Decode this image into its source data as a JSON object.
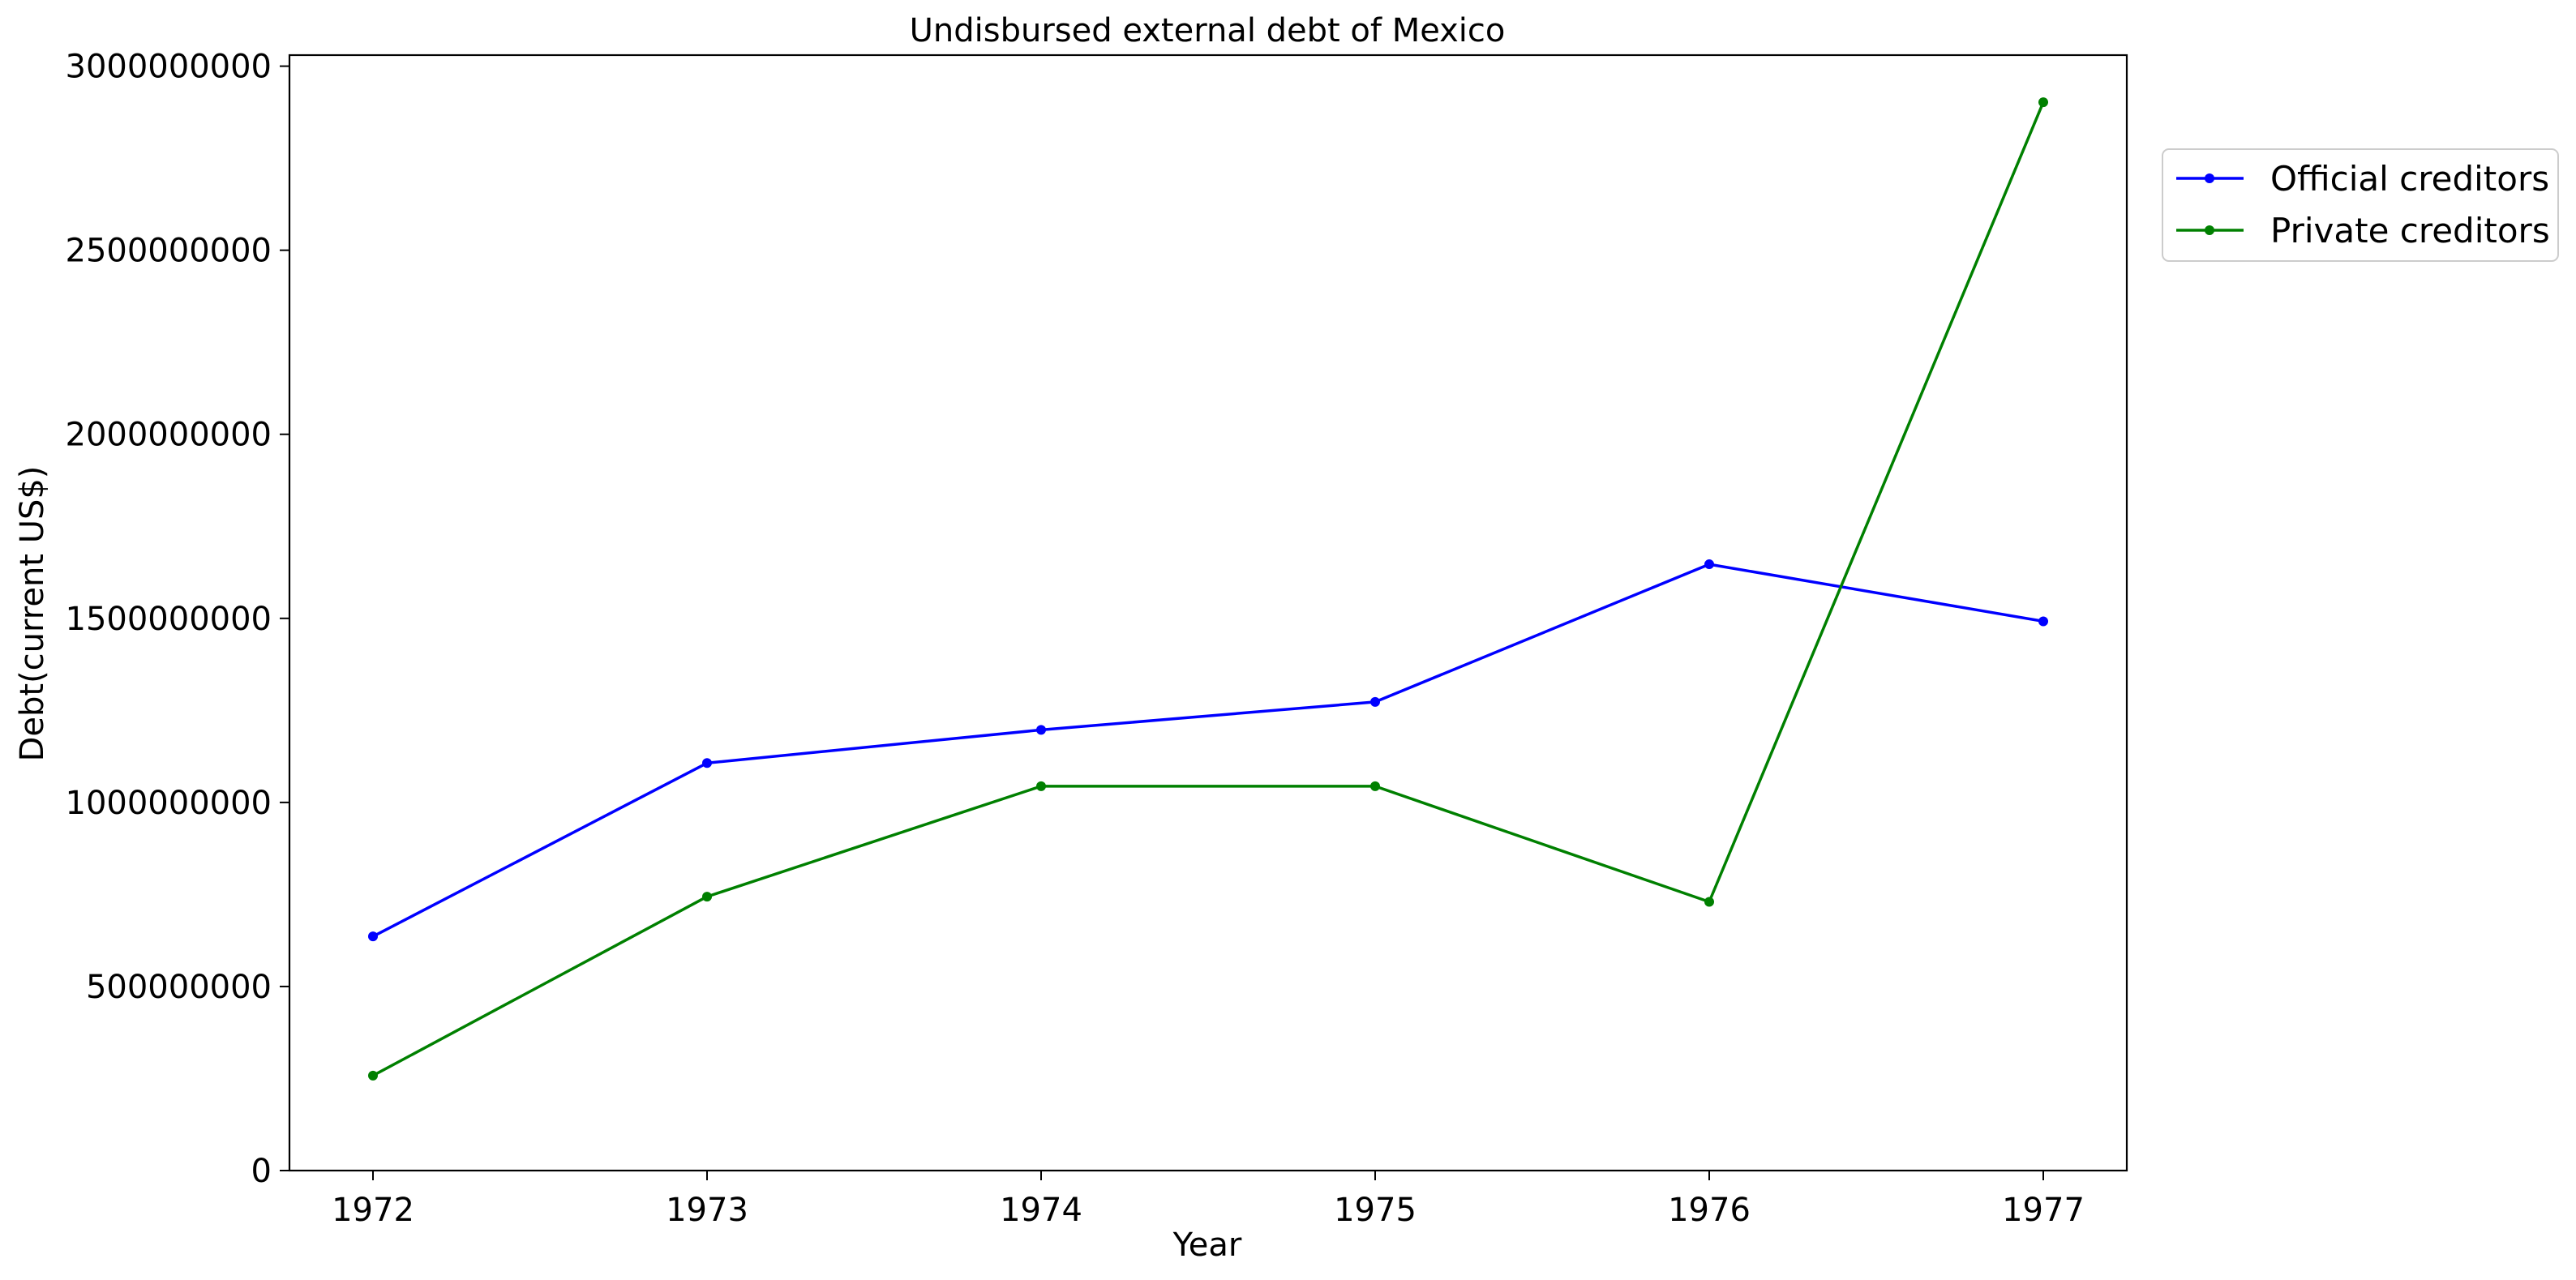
{
  "chart_data": {
    "type": "line",
    "title": "Undisbursed external debt of Mexico",
    "xlabel": "Year",
    "ylabel": "Debt(current US$)",
    "x": [
      1972,
      1973,
      1974,
      1975,
      1976,
      1977
    ],
    "x_tick_labels": [
      "1972",
      "1973",
      "1974",
      "1975",
      "1976",
      "1977"
    ],
    "xlim": [
      1971.75,
      1977.25
    ],
    "ylim": [
      0,
      3030000000
    ],
    "y_ticks": [
      0,
      500000000,
      1000000000,
      1500000000,
      2000000000,
      2500000000,
      3000000000
    ],
    "y_tick_labels": [
      "0",
      "500000000",
      "1000000000",
      "1500000000",
      "2000000000",
      "2500000000",
      "3000000000"
    ],
    "series": [
      {
        "name": "Official creditors",
        "color": "#0000ff",
        "values": [
          636000000,
          1107000000,
          1197000000,
          1273000000,
          1647000000,
          1492000000
        ]
      },
      {
        "name": "Private creditors",
        "color": "#008000",
        "values": [
          258000000,
          744000000,
          1044000000,
          1044000000,
          730000000,
          2902000000
        ]
      }
    ],
    "grid": false,
    "legend_placement": "outside-top-right",
    "marker": "dot"
  }
}
